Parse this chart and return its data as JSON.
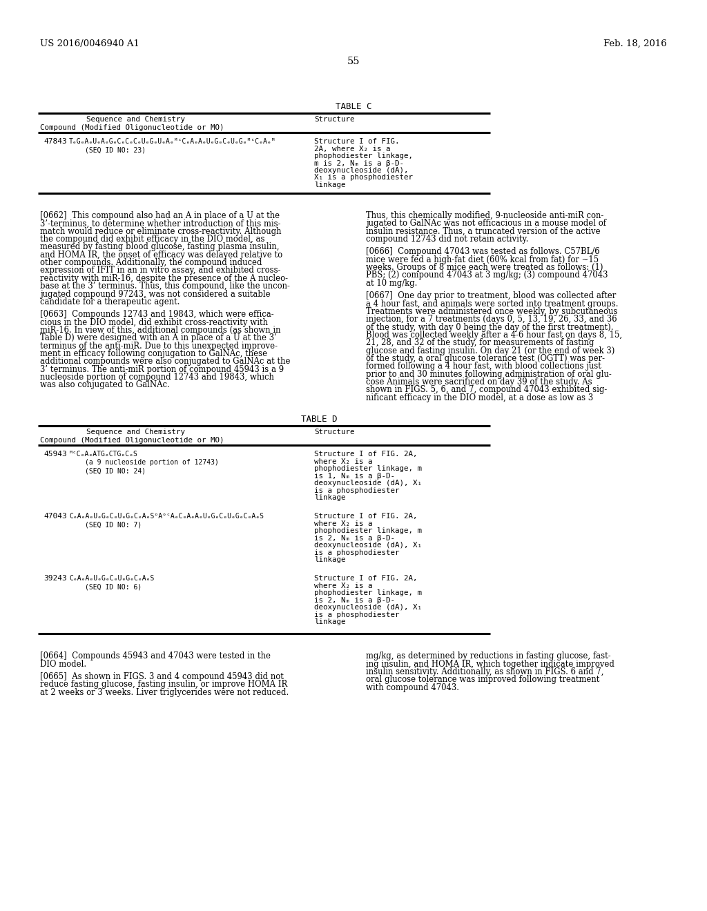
{
  "bg_color": "#ffffff",
  "header_left": "US 2016/0046940 A1",
  "header_right": "Feb. 18, 2016",
  "page_number": "55",
  "table_c_title": "TABLE C",
  "table_d_title": "TABLE D",
  "col1_header_line1": "Sequence and Chemistry",
  "col1_header_line2": "Compound (Modified Oligonucleotide or MO)",
  "col2_header": "Structure",
  "table_c_compound": "47843",
  "table_c_seq1": "TₑGₑAₑUₑAₑGₑCₑCₑCₑUₑGₑUₑAₑᴹᶜCₑAₑAₑUₑGₑCₑUₑGₑᴹᶜCₑAₑᴹ",
  "table_c_seq2": "(SEQ ID NO: 23)",
  "table_c_structure": [
    "Structure I of FIG.",
    "2A, where X₂ is a",
    "phophodiester linkage,",
    "m is 2, Nₘ is a β-D-",
    "deoxynucleoside (dA),",
    "X₁ is a phosphodiester",
    "linkage"
  ],
  "para_0662_left": "[0662]  This compound also had an A in place of a U at the\n3’-terminus, to determine whether introduction of this mis-\nmatch would reduce or eliminate cross-reactivity. Although\nthe compound did exhibit efficacy in the DIO model, as\nmeasured by fasting blood glucose, fasting plasma insulin,\nand HOMA IR, the onset of efficacy was delayed relative to\nother compounds. Additionally, the compound induced\nexpression of IFIT in an in vitro assay, and exhibited cross-\nreactivity with miR-16, despite the presence of the A nucleo-\nbase at the 3’ terminus. Thus, this compound, like the uncon-\njugated compound 97243, was not considered a suitable\ncandidate for a therapeutic agent.",
  "para_0663_left": "[0663]  Compounds 12743 and 19843, which were effica-\ncious in the DIO model, did exhibit cross-reactivity with\nmiR-16. In view of this, additional compounds (as shown in\nTable D) were designed with an A in place of a U at the 3’\nterminus of the anti-miR. Due to this unexpected improve-\nment in efficacy following conjugation to GalNAc, these\nadditional compounds were also conjugated to GalNAc at the\n3’ terminus. The anti-miR portion of compound 45943 is a 9\nnucleoside portion of compound 12743 and 19843, which\nwas also conjugated to GalNAc.",
  "para_right1": "Thus, this chemically modified, 9-nucleoside anti-miR con-\njugated to GalNAc was not efficacious in a mouse model of\ninsulin resistance. Thus, a truncated version of the active\ncompound 12743 did not retain activity.",
  "para_0666_right": "[0666]  Compound 47043 was tested as follows. C57BL/6\nmice were fed a high-fat diet (60% kcal from fat) for ~15\nweeks. Groups of 8 mice each were treated as follows: (1)\nPBS; (2) compound 47043 at 3 mg/kg; (3) compound 47043\nat 10 mg/kg.",
  "para_0667_right": "[0667]  One day prior to treatment, blood was collected after\na 4 hour fast, and animals were sorted into treatment groups.\nTreatments were administered once weekly, by subcutaneous\ninjection, for a 7 treatments (days 0, 5, 13, 19, 26, 33, and 36\nof the study, with day 0 being the day of the first treatment).\nBlood was collected weekly after a 4-6 hour fast on days 8, 15,\n21, 28, and 32 of the study, for measurements of fasting\nglucose and fasting insulin. On day 21 (or the end of week 3)\nof the study, a oral glucose tolerance test (OGTT) was per-\nformed following a 4 hour fast, with blood collections just\nprior to and 30 minutes following administration of oral glu-\ncose Animals were sacrificed on day 39 of the study. As\nshown in FIGS. 5, 6, and 7, compound 47043 exhibited sig-\nnificant efficacy in the DIO model, at a dose as low as 3",
  "table_d_rows": [
    {
      "compound": "45943",
      "seq_line1": "ᴹᶜCₑAₑATGₑCTGₑCₑS",
      "seq_line2": "(a 9 nucleoside portion of 12743)",
      "seq_line3": "(SEQ ID NO: 24)",
      "structure_lines": [
        "Structure I of FIG. 2A,",
        "where X₂ is a",
        "phophodiester linkage, m",
        "is 1, Nₘ is a β-D-",
        "deoxynucleoside (dA), X₁",
        "is a phosphodiester",
        "linkage"
      ]
    },
    {
      "compound": "47043",
      "seq_line1": "CₑAₑAₑUₑGₑCₑUₑGₑCₑAₑSᵒAᵒᶜAₑCₑAₑAₑUₑGₑCₑUₑGₑCₑAₑS",
      "seq_line2": "(SEQ ID NO: 7)",
      "structure_lines": [
        "Structure I of FIG. 2A,",
        "where X₂ is a",
        "phophodiester linkage, m",
        "is 2, Nₘ is a β-D-",
        "deoxynucleoside (dA), X₁",
        "is a phosphodiester",
        "linkage"
      ]
    },
    {
      "compound": "39243",
      "seq_line1": "CₑAₑAₑUₑGₑCₑUₑGₑCₑAₑS",
      "seq_line2": "(SEQ ID NO: 6)",
      "structure_lines": [
        "Structure I of FIG. 2A,",
        "where X₂ is a",
        "phophodiester linkage, m",
        "is 2, Nₘ is a β-D-",
        "deoxynucleoside (dA), X₁",
        "is a phosphodiester",
        "linkage"
      ]
    }
  ],
  "para_0664_left": "[0664]  Compounds 45943 and 47043 were tested in the\nDIO model.",
  "para_0665_left": "[0665]  As shown in FIGS. 3 and 4 compound 45943 did not\nreduce fasting glucose, fasting insulin, or improve HOMA IR\nat 2 weeks or 3 weeks. Liver triglycerides were not reduced.",
  "para_bottom_right": "mg/kg, as determined by reductions in fasting glucose, fast-\ning insulin, and HOMA IR, which together indicate improved\ninsulin sensitivity. Additionally, as shown in FIGS. 6 and 7,\noral glucose tolerance was improved following treatment\nwith compound 47043."
}
